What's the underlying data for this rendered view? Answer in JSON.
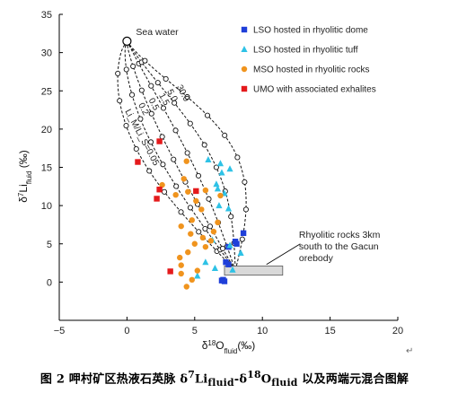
{
  "chart_data": {
    "type": "scatter",
    "xlabel": {
      "pre": "δ",
      "sup": "18",
      "main": "O",
      "sub": "fluid",
      "post": "(‰)"
    },
    "ylabel": {
      "pre": "δ",
      "sup": "7",
      "main": "Li",
      "sub": "fluid",
      "post": " (‰)"
    },
    "xlim": [
      -5,
      20
    ],
    "ylim": [
      -5,
      35
    ],
    "xticks": [
      -5,
      0,
      5,
      10,
      15,
      20
    ],
    "yticks": [
      0,
      5,
      10,
      15,
      20,
      25,
      30,
      35
    ],
    "grid": false,
    "legend_position": "top-right",
    "series": [
      {
        "name": "LSO hosted in rhyolitic dome",
        "marker": "square",
        "color": "#1f3fd9",
        "points": [
          [
            7.0,
            0.2
          ],
          [
            7.2,
            0.1
          ],
          [
            7.1,
            0.3
          ],
          [
            8.1,
            5.0
          ],
          [
            8.6,
            6.4
          ],
          [
            7.5,
            4.6
          ],
          [
            8.0,
            5.3
          ],
          [
            7.3,
            2.6
          ],
          [
            7.5,
            2.3
          ]
        ]
      },
      {
        "name": "LSO hosted in rhyolitic tuff",
        "marker": "triangle",
        "color": "#2ec2e6",
        "points": [
          [
            6.0,
            16.0
          ],
          [
            6.9,
            15.5
          ],
          [
            7.6,
            14.8
          ],
          [
            7.0,
            14.3
          ],
          [
            6.6,
            12.8
          ],
          [
            6.7,
            12.2
          ],
          [
            7.2,
            11.6
          ],
          [
            6.8,
            10.0
          ],
          [
            7.5,
            9.6
          ],
          [
            8.4,
            3.8
          ],
          [
            7.6,
            4.8
          ],
          [
            6.5,
            1.8
          ],
          [
            5.2,
            0.8
          ],
          [
            7.8,
            1.6
          ],
          [
            5.8,
            2.6
          ],
          [
            6.3,
            5.5
          ]
        ]
      },
      {
        "name": "MSO hosted in rhyolitic rocks",
        "marker": "circle",
        "color": "#f0941e",
        "points": [
          [
            4.4,
            15.8
          ],
          [
            4.2,
            13.5
          ],
          [
            2.6,
            12.7
          ],
          [
            5.1,
            10.6
          ],
          [
            5.5,
            9.5
          ],
          [
            4.8,
            8.1
          ],
          [
            4.0,
            7.3
          ],
          [
            4.7,
            6.3
          ],
          [
            5.6,
            5.8
          ],
          [
            6.4,
            6.6
          ],
          [
            5.8,
            4.6
          ],
          [
            4.5,
            3.9
          ],
          [
            4.0,
            2.2
          ],
          [
            6.2,
            5.4
          ],
          [
            5.0,
            5.0
          ],
          [
            3.6,
            11.4
          ],
          [
            4.5,
            11.8
          ],
          [
            5.8,
            12.0
          ],
          [
            6.9,
            11.3
          ],
          [
            6.7,
            7.8
          ],
          [
            4.4,
            -0.6
          ],
          [
            4.8,
            0.3
          ],
          [
            4.0,
            1.1
          ],
          [
            5.2,
            1.5
          ],
          [
            3.9,
            3.2
          ]
        ]
      },
      {
        "name": "UMO with associated exhalites",
        "marker": "square",
        "color": "#e41a1c",
        "points": [
          [
            2.4,
            18.4
          ],
          [
            0.8,
            15.7
          ],
          [
            2.4,
            12.1
          ],
          [
            2.2,
            10.9
          ],
          [
            5.1,
            11.9
          ],
          [
            3.2,
            1.4
          ]
        ]
      }
    ],
    "end_members": {
      "sea_water": {
        "label": "Sea water",
        "x": 0,
        "y": 31.5
      },
      "rhyolite": {
        "label": "Rhyolitic rocks 3km south to the Gacun orebody",
        "x": 8.0,
        "y": 1.5,
        "x_range": [
          7.2,
          11.5
        ],
        "y_range": [
          0.9,
          2.1
        ]
      }
    },
    "mixing_curves": [
      {
        "label": "Li_M/Li_S=0.05",
        "ratio": 0.05
      },
      {
        "label": "0.2",
        "ratio": 0.2
      },
      {
        "label": "0.5",
        "ratio": 0.5
      },
      {
        "label": "1.5",
        "ratio": 1.5
      },
      {
        "label": "5.0",
        "ratio": 5.0
      },
      {
        "label": "30.0",
        "ratio": 30.0
      }
    ],
    "annotations": [
      {
        "text_lines": [
          "Rhyolitic rocks 3km",
          "south to the Gacun",
          "orebody"
        ]
      }
    ]
  },
  "caption": {
    "prefix": "图 2 呷村矿区热液石英脉 δ",
    "sup1": "7",
    "li": "Li",
    "sub1": "fluid",
    "mid": "-δ",
    "sup2": "18",
    "o": "O",
    "sub2": "fluid",
    "suffix": " 以及两端元混合图解"
  },
  "corner_mark": "↵"
}
